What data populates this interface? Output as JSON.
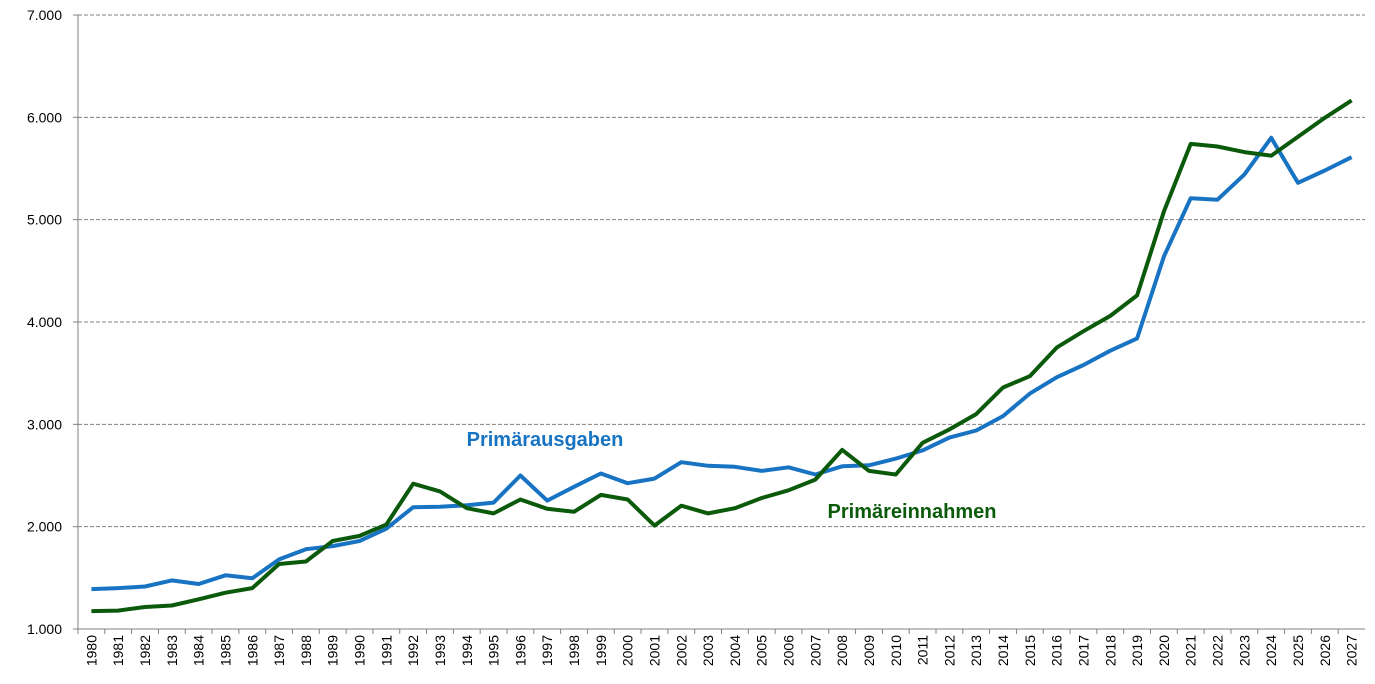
{
  "chart_data": {
    "type": "line",
    "categories": [
      "1980",
      "1981",
      "1982",
      "1983",
      "1984",
      "1985",
      "1986",
      "1987",
      "1988",
      "1989",
      "1990",
      "1991",
      "1992",
      "1993",
      "1994",
      "1995",
      "1996",
      "1997",
      "1998",
      "1999",
      "2000",
      "2001",
      "2002",
      "2003",
      "2004",
      "2005",
      "2006",
      "2007",
      "2008",
      "2009",
      "2010",
      "2011",
      "2012",
      "2013",
      "2014",
      "2015",
      "2016",
      "2017",
      "2018",
      "2019",
      "2020",
      "2021",
      "2022",
      "2023",
      "2024",
      "2025",
      "2026",
      "2027"
    ],
    "series": [
      {
        "name": "Primärausgaben",
        "color": "#1874c3",
        "values": [
          1390,
          1400,
          1415,
          1475,
          1440,
          1525,
          1495,
          1680,
          1780,
          1810,
          1860,
          1980,
          2190,
          2195,
          2210,
          2235,
          2500,
          2255,
          2390,
          2520,
          2425,
          2470,
          2630,
          2595,
          2585,
          2545,
          2580,
          2510,
          2590,
          2600,
          2665,
          2745,
          2870,
          2940,
          3080,
          3300,
          3460,
          3580,
          3720,
          3840,
          4640,
          5210,
          5195,
          5440,
          5800,
          5360,
          5480,
          5610
        ]
      },
      {
        "name": "Primäreinnahmen",
        "color": "#0b5a0b",
        "values": [
          1175,
          1180,
          1215,
          1230,
          1290,
          1355,
          1400,
          1635,
          1660,
          1860,
          1910,
          2020,
          2420,
          2345,
          2180,
          2130,
          2265,
          2175,
          2145,
          2310,
          2265,
          2010,
          2205,
          2130,
          2180,
          2280,
          2355,
          2460,
          2750,
          2545,
          2510,
          2820,
          2950,
          3100,
          3360,
          3470,
          3750,
          3910,
          4060,
          4260,
          5080,
          5740,
          5715,
          5660,
          5625,
          5810,
          5995,
          6165
        ]
      }
    ],
    "ylim": [
      1000,
      7000
    ],
    "yticks": [
      {
        "value": 1000,
        "label": "1.000"
      },
      {
        "value": 2000,
        "label": "2.000"
      },
      {
        "value": 3000,
        "label": "3.000"
      },
      {
        "value": 4000,
        "label": "4.000"
      },
      {
        "value": 5000,
        "label": "5.000"
      },
      {
        "value": 6000,
        "label": "6.000"
      },
      {
        "value": 7000,
        "label": "7.000"
      }
    ],
    "grid": true
  }
}
